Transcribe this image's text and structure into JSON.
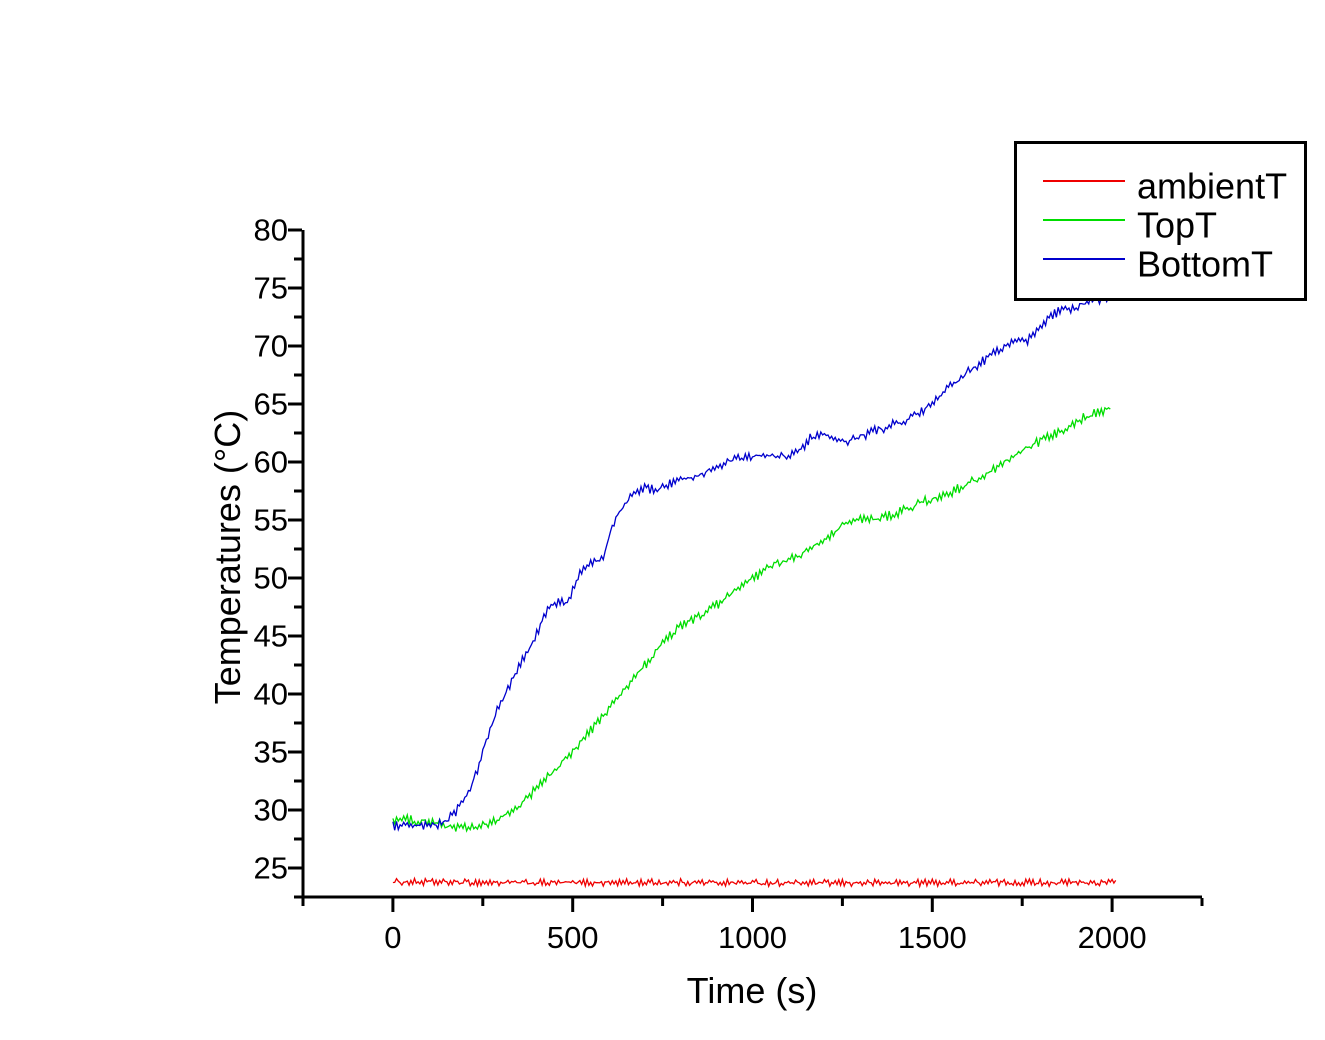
{
  "figure": {
    "background": "#ffffff"
  },
  "chart_data": {
    "type": "line",
    "title": "",
    "xlabel": "Time (s)",
    "ylabel": "Temperatures (°C)",
    "xlim": [
      -250,
      2250
    ],
    "ylim": [
      22.5,
      80
    ],
    "x_major_ticks": [
      0,
      500,
      1000,
      1500,
      2000
    ],
    "x_minor_tick_step": 250,
    "y_major_ticks": [
      25,
      30,
      35,
      40,
      45,
      50,
      55,
      60,
      65,
      70,
      75,
      80
    ],
    "y_minor_tick_step": 2.5,
    "grid": false,
    "axis_color": "#000000",
    "legend": {
      "position": "top-right",
      "border_color": "#000000"
    },
    "series": [
      {
        "name": "ambientT",
        "color": "#ef0000",
        "noise_amplitude_c": 0.2,
        "sample_step_s": 5,
        "anchors_t_c": [
          [
            0,
            23.8
          ],
          [
            400,
            23.72
          ],
          [
            800,
            23.76
          ],
          [
            1200,
            23.7
          ],
          [
            1600,
            23.75
          ],
          [
            2010,
            23.74
          ]
        ]
      },
      {
        "name": "TopT",
        "color": "#00dd00",
        "noise_amplitude_c": 0.27,
        "sample_step_s": 5,
        "anchors_t_c": [
          [
            0,
            29.2
          ],
          [
            40,
            29.15
          ],
          [
            80,
            29.05
          ],
          [
            120,
            28.85
          ],
          [
            160,
            28.55
          ],
          [
            200,
            28.45
          ],
          [
            240,
            28.55
          ],
          [
            270,
            28.8
          ],
          [
            300,
            29.3
          ],
          [
            330,
            29.9
          ],
          [
            360,
            30.6
          ],
          [
            400,
            31.9
          ],
          [
            440,
            33.1
          ],
          [
            480,
            34.4
          ],
          [
            520,
            35.8
          ],
          [
            560,
            37.2
          ],
          [
            600,
            38.7
          ],
          [
            640,
            40.2
          ],
          [
            680,
            41.7
          ],
          [
            720,
            43.2
          ],
          [
            760,
            44.7
          ],
          [
            790,
            45.6
          ],
          [
            820,
            46.2
          ],
          [
            850,
            46.7
          ],
          [
            880,
            47.2
          ],
          [
            910,
            47.9
          ],
          [
            950,
            48.8
          ],
          [
            990,
            49.7
          ],
          [
            1030,
            50.6
          ],
          [
            1070,
            51.3
          ],
          [
            1100,
            51.5
          ],
          [
            1140,
            52.1
          ],
          [
            1180,
            52.9
          ],
          [
            1220,
            53.8
          ],
          [
            1250,
            54.6
          ],
          [
            1290,
            55.0
          ],
          [
            1350,
            55.1
          ],
          [
            1400,
            55.6
          ],
          [
            1440,
            56.1
          ],
          [
            1480,
            56.6
          ],
          [
            1520,
            57.0
          ],
          [
            1560,
            57.5
          ],
          [
            1600,
            58.1
          ],
          [
            1640,
            58.8
          ],
          [
            1680,
            59.6
          ],
          [
            1720,
            60.4
          ],
          [
            1760,
            61.1
          ],
          [
            1800,
            61.8
          ],
          [
            1840,
            62.4
          ],
          [
            1880,
            63.1
          ],
          [
            1920,
            63.8
          ],
          [
            1960,
            64.3
          ],
          [
            1995,
            64.6
          ]
        ]
      },
      {
        "name": "BottomT",
        "color": "#0000cd",
        "noise_amplitude_c": 0.27,
        "sample_step_s": 5,
        "anchors_t_c": [
          [
            0,
            28.65
          ],
          [
            50,
            28.55
          ],
          [
            100,
            28.6
          ],
          [
            140,
            28.9
          ],
          [
            170,
            29.6
          ],
          [
            200,
            31.0
          ],
          [
            230,
            33.0
          ],
          [
            260,
            36.0
          ],
          [
            290,
            38.6
          ],
          [
            320,
            40.4
          ],
          [
            360,
            42.9
          ],
          [
            390,
            44.4
          ],
          [
            415,
            46.3
          ],
          [
            435,
            47.5
          ],
          [
            465,
            47.9
          ],
          [
            485,
            48.0
          ],
          [
            505,
            49.3
          ],
          [
            525,
            50.6
          ],
          [
            545,
            51.2
          ],
          [
            575,
            51.5
          ],
          [
            590,
            52.2
          ],
          [
            605,
            54.0
          ],
          [
            625,
            55.5
          ],
          [
            660,
            57.0
          ],
          [
            700,
            57.7
          ],
          [
            740,
            57.7
          ],
          [
            780,
            58.2
          ],
          [
            820,
            58.6
          ],
          [
            860,
            59.0
          ],
          [
            900,
            59.7
          ],
          [
            930,
            60.0
          ],
          [
            970,
            60.3
          ],
          [
            1010,
            60.5
          ],
          [
            1050,
            60.6
          ],
          [
            1090,
            60.5
          ],
          [
            1125,
            60.8
          ],
          [
            1160,
            62.0
          ],
          [
            1190,
            62.5
          ],
          [
            1215,
            62.1
          ],
          [
            1245,
            61.7
          ],
          [
            1275,
            61.9
          ],
          [
            1310,
            62.3
          ],
          [
            1350,
            62.8
          ],
          [
            1390,
            63.2
          ],
          [
            1430,
            63.6
          ],
          [
            1470,
            64.3
          ],
          [
            1510,
            65.3
          ],
          [
            1550,
            66.5
          ],
          [
            1600,
            67.8
          ],
          [
            1650,
            68.9
          ],
          [
            1690,
            69.8
          ],
          [
            1720,
            70.2
          ],
          [
            1760,
            70.4
          ],
          [
            1790,
            71.2
          ],
          [
            1820,
            72.3
          ],
          [
            1850,
            73.0
          ],
          [
            1870,
            73.2
          ],
          [
            1890,
            73.1
          ],
          [
            1920,
            73.7
          ],
          [
            1955,
            74.0
          ],
          [
            1990,
            74.2
          ]
        ]
      }
    ]
  }
}
